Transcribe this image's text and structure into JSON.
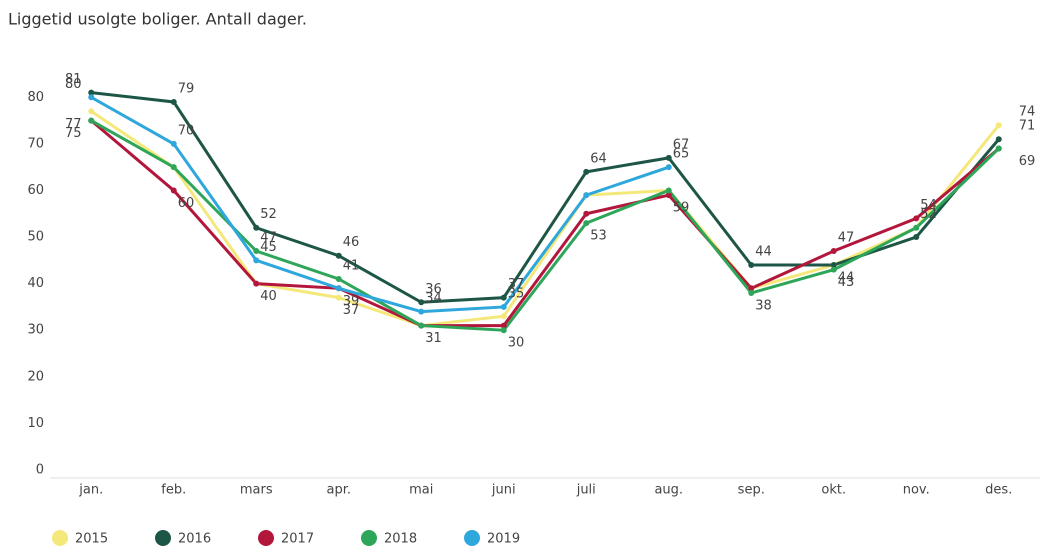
{
  "chart_data": {
    "type": "line",
    "title": "Liggetid usolgte boliger. Antall dager.",
    "categories": [
      "jan.",
      "feb.",
      "mars",
      "apr.",
      "mai",
      "juni",
      "juli",
      "aug.",
      "sep.",
      "okt.",
      "nov.",
      "des."
    ],
    "ylim": [
      0,
      85
    ],
    "yticks": [
      0,
      10,
      20,
      30,
      40,
      50,
      60,
      70,
      80
    ],
    "grid": false,
    "legend": "bottom-left",
    "series": [
      {
        "name": "2015",
        "color": "#f5e87a",
        "values": [
          77,
          65,
          40,
          37,
          31,
          33,
          59,
          60,
          39,
          44,
          52,
          74
        ],
        "value_labels": [
          77,
          null,
          null,
          37,
          null,
          null,
          null,
          null,
          null,
          null,
          null,
          74
        ]
      },
      {
        "name": "2016",
        "color": "#1d5646",
        "values": [
          81,
          79,
          52,
          46,
          36,
          37,
          64,
          67,
          44,
          44,
          50,
          71
        ],
        "value_labels": [
          81,
          79,
          52,
          46,
          36,
          37,
          64,
          67,
          44,
          44,
          null,
          71
        ]
      },
      {
        "name": "2017",
        "color": "#b3163b",
        "values": [
          75,
          60,
          40,
          39,
          31,
          31,
          55,
          59,
          39,
          47,
          54,
          69
        ],
        "value_labels": [
          75,
          60,
          40,
          39,
          null,
          null,
          null,
          59,
          null,
          47,
          54,
          null
        ]
      },
      {
        "name": "2018",
        "color": "#2ea659",
        "values": [
          75,
          65,
          47,
          41,
          31,
          30,
          53,
          60,
          38,
          43,
          52,
          69
        ],
        "value_labels": [
          null,
          null,
          47,
          41,
          31,
          30,
          53,
          null,
          38,
          43,
          52,
          69
        ]
      },
      {
        "name": "2019",
        "color": "#2ea7dc",
        "values": [
          80,
          70,
          45,
          39,
          34,
          35,
          59,
          65,
          null,
          null,
          null,
          null
        ],
        "value_labels": [
          80,
          70,
          45,
          null,
          34,
          35,
          null,
          65,
          null,
          null,
          null,
          null
        ]
      }
    ]
  }
}
